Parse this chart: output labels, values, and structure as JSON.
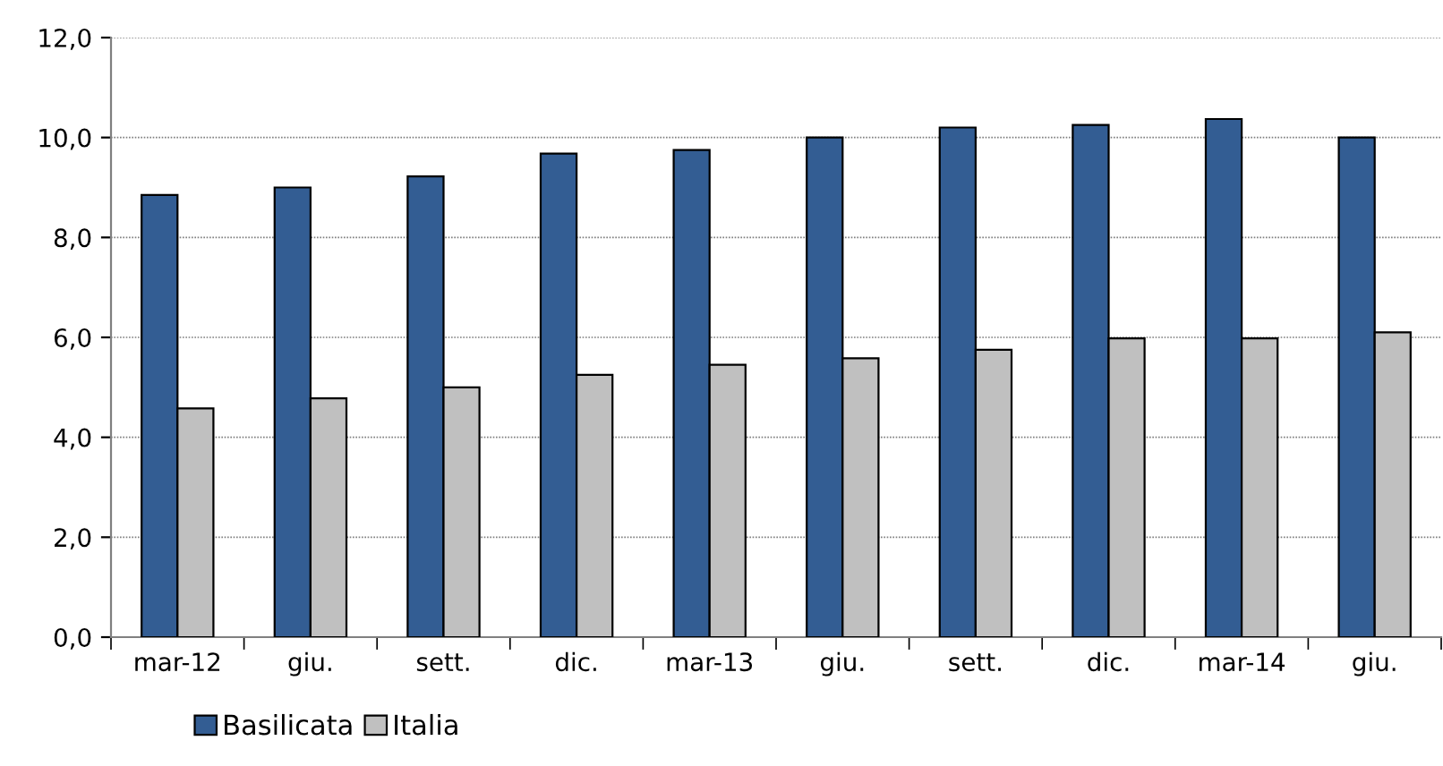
{
  "chart_data": {
    "type": "bar",
    "categories": [
      "mar-12",
      "giu.",
      "sett.",
      "dic.",
      "mar-13",
      "giu.",
      "sett.",
      "dic.",
      "mar-14",
      "giu."
    ],
    "series": [
      {
        "name": "Basilicata",
        "color": "#335d93",
        "values": [
          8.85,
          9.0,
          9.22,
          9.68,
          9.75,
          10.0,
          10.2,
          10.25,
          10.37,
          10.0
        ]
      },
      {
        "name": "Italia",
        "color": "#c0c0c0",
        "values": [
          4.58,
          4.78,
          5.0,
          5.25,
          5.45,
          5.58,
          5.75,
          5.98,
          5.98,
          6.1
        ]
      }
    ],
    "ylim": [
      0,
      12
    ],
    "yticks": [
      {
        "value": 0,
        "label": "0,0"
      },
      {
        "value": 2,
        "label": "2,0"
      },
      {
        "value": 4,
        "label": "4,0"
      },
      {
        "value": 6,
        "label": "6,0"
      },
      {
        "value": 8,
        "label": "8,0"
      },
      {
        "value": 10,
        "label": "10,0"
      },
      {
        "value": 12,
        "label": "12,0"
      }
    ],
    "grid": "y",
    "legend": "bottom left"
  }
}
